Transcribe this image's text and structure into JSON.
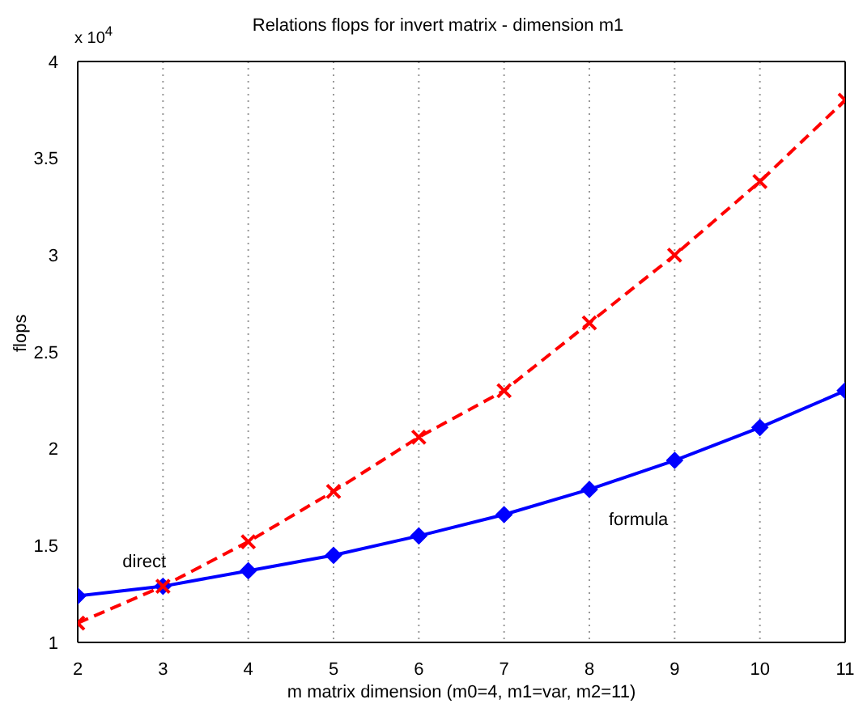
{
  "chart_data": {
    "type": "line",
    "title": "Relations flops for invert matrix - dimension m1",
    "xlabel": "m matrix dimension (m0=4, m1=var, m2=11)",
    "ylabel": "flops",
    "annotations": [
      "x 10$^{4}$"
    ],
    "x": [
      2,
      3,
      4,
      5,
      6,
      7,
      8,
      9,
      10,
      11
    ],
    "series": [
      {
        "name": "direct",
        "color": "#ff0000",
        "values": [
          1.1,
          1.29,
          1.52,
          1.78,
          2.06,
          2.3,
          2.65,
          3.0,
          3.38,
          3.8
        ],
        "marker": "cross",
        "line_style": "dashed"
      },
      {
        "name": "formula",
        "color": "#0000ff",
        "values": [
          1.24,
          1.29,
          1.37,
          1.45,
          1.55,
          1.66,
          1.79,
          1.94,
          2.11,
          2.3
        ],
        "marker": "diamond",
        "line_style": "solid"
      }
    ],
    "xlim": [
      2,
      11
    ],
    "xticks": [
      2,
      3,
      4,
      5,
      6,
      7,
      8,
      9,
      10,
      11
    ],
    "ylim": [
      1,
      4
    ],
    "yticks": [
      1,
      1.5,
      2,
      2.5,
      3,
      3.5,
      4
    ],
    "grid": true,
    "legend": false
  }
}
